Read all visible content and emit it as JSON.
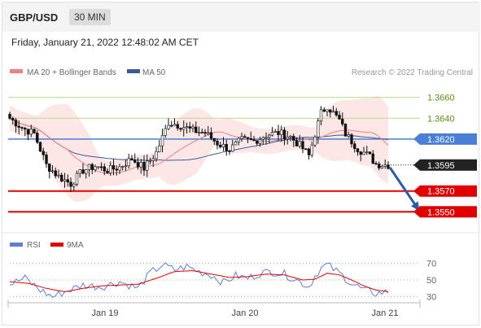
{
  "header": {
    "pair": "GBP/USD",
    "timeframe": "30 MIN"
  },
  "datetime": "Friday, January 21, 2022 12:48:02 AM CET",
  "credit": "Research © 2022 Trading Central",
  "colors": {
    "bollinger_fill": "#fde2e2",
    "ma20": "#f08080",
    "ma50": "#3c5a99",
    "resistance": "#b8d98a",
    "pivot": "#4a7fd6",
    "support": "#e00000",
    "last": "#222222",
    "arrow": "#2a5aa8",
    "rsi": "#5b7fd6",
    "rsi_ma": "#e00000"
  },
  "chart_data": [
    {
      "type": "candlestick",
      "title": "GBP/USD 30 MIN",
      "legend": [
        {
          "name": "MA 20 + Bollinger Bands",
          "color": "#f08080"
        },
        {
          "name": "MA 50",
          "color": "#3c5a99"
        }
      ],
      "legend_position": "top-left",
      "x_ticks": [
        "Jan 19",
        "Jan 20",
        "Jan 21"
      ],
      "ylim": [
        1.3533,
        1.3677
      ],
      "levels": [
        {
          "label": "1.3660",
          "value": 1.366,
          "role": "resistance"
        },
        {
          "label": "1.3640",
          "value": 1.364,
          "role": "resistance"
        },
        {
          "label": "1.3620",
          "value": 1.362,
          "role": "pivot"
        },
        {
          "label": "1.3595",
          "value": 1.3595,
          "role": "last"
        },
        {
          "label": "1.3570",
          "value": 1.357,
          "role": "support"
        },
        {
          "label": "1.3550",
          "value": 1.355,
          "role": "support"
        }
      ],
      "projection": {
        "from": 1.3595,
        "to": 1.355,
        "direction": "down"
      },
      "anchors": [
        [
          0,
          1.364
        ],
        [
          4,
          1.3631
        ],
        [
          8,
          1.3625
        ],
        [
          12,
          1.3595
        ],
        [
          16,
          1.3584
        ],
        [
          20,
          1.3577
        ],
        [
          24,
          1.359
        ],
        [
          28,
          1.3594
        ],
        [
          32,
          1.359
        ],
        [
          36,
          1.3593
        ],
        [
          40,
          1.3601
        ],
        [
          44,
          1.3592
        ],
        [
          48,
          1.3607
        ],
        [
          52,
          1.3636
        ],
        [
          56,
          1.3633
        ],
        [
          60,
          1.3628
        ],
        [
          64,
          1.3626
        ],
        [
          68,
          1.3616
        ],
        [
          72,
          1.361
        ],
        [
          76,
          1.3619
        ],
        [
          80,
          1.3618
        ],
        [
          84,
          1.3624
        ],
        [
          88,
          1.3626
        ],
        [
          92,
          1.3622
        ],
        [
          96,
          1.3611
        ],
        [
          98,
          1.3604
        ],
        [
          100,
          1.3625
        ],
        [
          102,
          1.3645
        ],
        [
          104,
          1.3652
        ],
        [
          108,
          1.3638
        ],
        [
          110,
          1.3625
        ],
        [
          114,
          1.3611
        ],
        [
          118,
          1.3603
        ],
        [
          120,
          1.3596
        ],
        [
          124,
          1.3595
        ]
      ]
    },
    {
      "type": "line",
      "title": "RSI",
      "legend": [
        {
          "name": "RSI",
          "color": "#5b7fd6"
        },
        {
          "name": "9MA",
          "color": "#e00000"
        }
      ],
      "legend_position": "top-left",
      "levels": [
        "70",
        "50",
        "30"
      ],
      "ylim": [
        20,
        80
      ],
      "rsi_anchors": [
        [
          0,
          45
        ],
        [
          5,
          52
        ],
        [
          10,
          38
        ],
        [
          14,
          30
        ],
        [
          18,
          36
        ],
        [
          24,
          44
        ],
        [
          30,
          42
        ],
        [
          36,
          48
        ],
        [
          42,
          40
        ],
        [
          46,
          58
        ],
        [
          50,
          68
        ],
        [
          54,
          62
        ],
        [
          58,
          66
        ],
        [
          62,
          60
        ],
        [
          66,
          56
        ],
        [
          70,
          47
        ],
        [
          74,
          55
        ],
        [
          78,
          52
        ],
        [
          82,
          58
        ],
        [
          86,
          60
        ],
        [
          90,
          57
        ],
        [
          94,
          50
        ],
        [
          98,
          42
        ],
        [
          100,
          55
        ],
        [
          102,
          64
        ],
        [
          104,
          68
        ],
        [
          108,
          58
        ],
        [
          112,
          46
        ],
        [
          116,
          38
        ],
        [
          120,
          34
        ],
        [
          124,
          36
        ]
      ],
      "ma_anchors": [
        [
          0,
          48
        ],
        [
          6,
          46
        ],
        [
          12,
          40
        ],
        [
          18,
          36
        ],
        [
          24,
          40
        ],
        [
          30,
          43
        ],
        [
          36,
          44
        ],
        [
          42,
          45
        ],
        [
          48,
          52
        ],
        [
          54,
          60
        ],
        [
          60,
          61
        ],
        [
          66,
          57
        ],
        [
          72,
          53
        ],
        [
          78,
          54
        ],
        [
          84,
          57
        ],
        [
          90,
          56
        ],
        [
          96,
          50
        ],
        [
          100,
          51
        ],
        [
          104,
          58
        ],
        [
          108,
          56
        ],
        [
          112,
          50
        ],
        [
          116,
          43
        ],
        [
          120,
          38
        ],
        [
          124,
          36
        ]
      ]
    }
  ]
}
